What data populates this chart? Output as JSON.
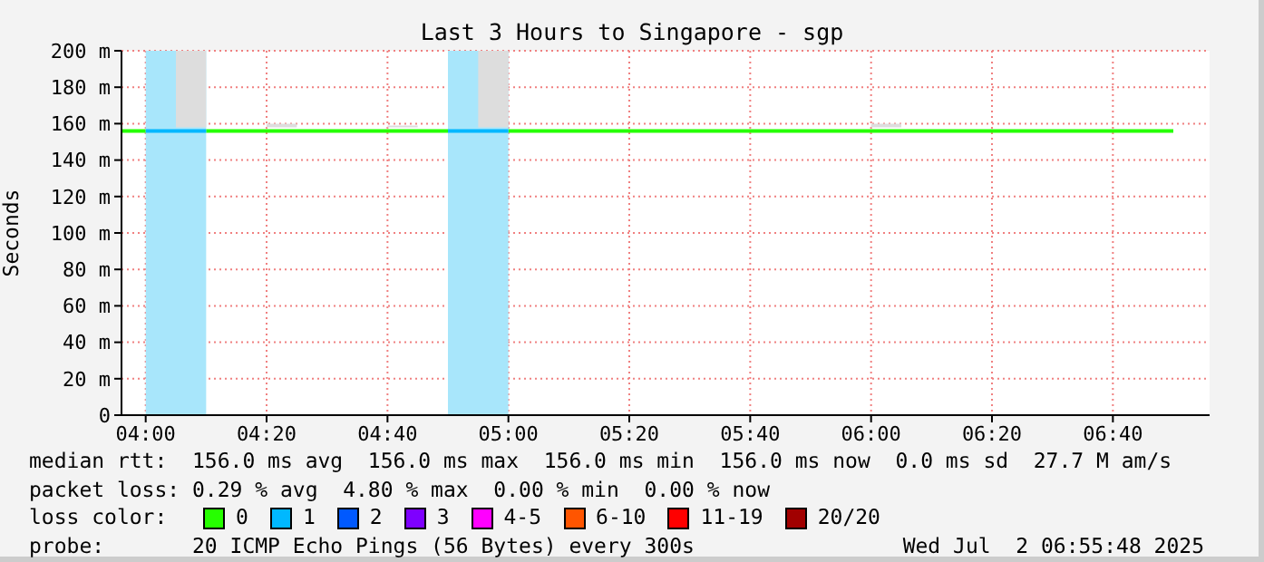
{
  "chart_data": {
    "type": "line",
    "title": "Last 3 Hours to Singapore - sgp",
    "ylabel": "Seconds",
    "x": [
      3.9333,
      4,
      4.0833,
      4.1667,
      4.25,
      4.3333,
      4.4167,
      4.5,
      4.5833,
      4.6667,
      4.75,
      4.8333,
      4.9167,
      5,
      5.0833,
      5.1667,
      5.25,
      5.3333,
      5.4167,
      5.5,
      5.5833,
      5.6667,
      5.75,
      5.8333,
      5.9167,
      6,
      6.0833,
      6.1667,
      6.25,
      6.3333,
      6.4167,
      6.5,
      6.5833,
      6.6667,
      6.75,
      6.8333
    ],
    "xlim": [
      3.9333,
      6.9333
    ],
    "xticks": [
      {
        "value": 4,
        "label": "04:00"
      },
      {
        "value": 4.3333,
        "label": "04:20"
      },
      {
        "value": 4.6667,
        "label": "04:40"
      },
      {
        "value": 5,
        "label": "05:00"
      },
      {
        "value": 5.3333,
        "label": "05:20"
      },
      {
        "value": 5.6667,
        "label": "05:40"
      },
      {
        "value": 6,
        "label": "06:00"
      },
      {
        "value": 6.3333,
        "label": "06:20"
      },
      {
        "value": 6.6667,
        "label": "06:40"
      }
    ],
    "ylim": [
      0,
      200
    ],
    "yticks": [
      0,
      {
        "value": 20,
        "label": "20 m"
      },
      {
        "value": 40,
        "label": "40 m"
      },
      {
        "value": 60,
        "label": "60 m"
      },
      {
        "value": 80,
        "label": "80 m"
      },
      {
        "value": 100,
        "label": "100 m"
      },
      {
        "value": 120,
        "label": "120 m"
      },
      {
        "value": 140,
        "label": "140 m"
      },
      {
        "value": 160,
        "label": "160 m"
      },
      {
        "value": 180,
        "label": "180 m"
      },
      {
        "value": 200,
        "label": "200 m"
      }
    ],
    "grid": true,
    "legend": "bottom",
    "legend_title": "loss color:",
    "line_style": "solid",
    "marker": "none",
    "bands": [
      {
        "axis": "x",
        "from": 4,
        "to": 4.1667,
        "color": "#a8e6fb"
      },
      {
        "axis": "x",
        "from": 4.8333,
        "to": 5,
        "color": "#a8e6fb"
      }
    ],
    "series": [
      {
        "name": "0",
        "color": "#26ff00",
        "values": [
          156,
          156,
          null,
          156,
          156,
          156,
          156,
          156,
          156,
          156,
          156,
          156,
          null,
          156,
          156,
          156,
          156,
          156,
          156,
          156,
          156,
          156,
          156,
          156,
          156,
          156,
          156,
          156,
          156,
          156,
          156,
          156,
          156,
          156,
          156,
          156
        ],
        "lower": [
          null,
          null,
          158,
          158,
          null,
          158,
          158,
          null,
          null,
          158,
          158,
          null,
          158,
          158,
          null,
          null,
          null,
          null,
          null,
          null,
          null,
          null,
          null,
          null,
          null,
          158,
          158,
          null,
          null,
          null,
          null,
          null,
          null,
          null,
          null,
          null
        ],
        "upper": [
          null,
          null,
          200,
          200,
          null,
          160,
          160,
          null,
          null,
          159,
          159,
          null,
          200,
          200,
          null,
          null,
          null,
          null,
          null,
          null,
          null,
          null,
          null,
          null,
          null,
          160,
          160,
          null,
          null,
          null,
          null,
          null,
          null,
          null,
          null,
          null
        ]
      },
      {
        "name": "1",
        "color": "#00b8ff",
        "values": [
          null,
          156,
          156,
          156,
          null,
          null,
          null,
          null,
          null,
          null,
          null,
          156,
          156,
          156,
          null,
          null,
          null,
          null,
          null,
          null,
          null,
          null,
          null,
          null,
          null,
          null,
          null,
          null,
          null,
          null,
          null,
          null,
          null,
          null,
          null,
          null
        ]
      },
      {
        "name": "2",
        "color": "#0059ff",
        "values": [
          null,
          null,
          null,
          null,
          null,
          null,
          null,
          null,
          null,
          null,
          null,
          null,
          null,
          null,
          null,
          null,
          null,
          null,
          null,
          null,
          null,
          null,
          null,
          null,
          null,
          null,
          null,
          null,
          null,
          null,
          null,
          null,
          null,
          null,
          null,
          null
        ]
      },
      {
        "name": "3",
        "color": "#7e00ff",
        "values": [
          null,
          null,
          null,
          null,
          null,
          null,
          null,
          null,
          null,
          null,
          null,
          null,
          null,
          null,
          null,
          null,
          null,
          null,
          null,
          null,
          null,
          null,
          null,
          null,
          null,
          null,
          null,
          null,
          null,
          null,
          null,
          null,
          null,
          null,
          null,
          null
        ]
      },
      {
        "name": "4-5",
        "color": "#ff00ff",
        "values": [
          null,
          null,
          null,
          null,
          null,
          null,
          null,
          null,
          null,
          null,
          null,
          null,
          null,
          null,
          null,
          null,
          null,
          null,
          null,
          null,
          null,
          null,
          null,
          null,
          null,
          null,
          null,
          null,
          null,
          null,
          null,
          null,
          null,
          null,
          null,
          null
        ]
      },
      {
        "name": "6-10",
        "color": "#ff5500",
        "values": [
          null,
          null,
          null,
          null,
          null,
          null,
          null,
          null,
          null,
          null,
          null,
          null,
          null,
          null,
          null,
          null,
          null,
          null,
          null,
          null,
          null,
          null,
          null,
          null,
          null,
          null,
          null,
          null,
          null,
          null,
          null,
          null,
          null,
          null,
          null,
          null
        ]
      },
      {
        "name": "11-19",
        "color": "#ff0000",
        "values": [
          null,
          null,
          null,
          null,
          null,
          null,
          null,
          null,
          null,
          null,
          null,
          null,
          null,
          null,
          null,
          null,
          null,
          null,
          null,
          null,
          null,
          null,
          null,
          null,
          null,
          null,
          null,
          null,
          null,
          null,
          null,
          null,
          null,
          null,
          null,
          null
        ]
      },
      {
        "name": "20/20",
        "color": "#a10000",
        "values": [
          null,
          null,
          null,
          null,
          null,
          null,
          null,
          null,
          null,
          null,
          null,
          null,
          null,
          null,
          null,
          null,
          null,
          null,
          null,
          null,
          null,
          null,
          null,
          null,
          null,
          null,
          null,
          null,
          null,
          null,
          null,
          null,
          null,
          null,
          null,
          null
        ]
      }
    ],
    "annotations": [
      "median rtt:  156.0 ms avg  156.0 ms max  156.0 ms min  156.0 ms now  0.0 ms sd  27.7 M am/s",
      "packet loss: 0.29 % avg  4.80 % max  0.00 % min  0.00 % now",
      "probe:       20 ICMP Echo Pings (56 Bytes) every 300s",
      "Wed Jul  2 06:55:48 2025"
    ]
  }
}
